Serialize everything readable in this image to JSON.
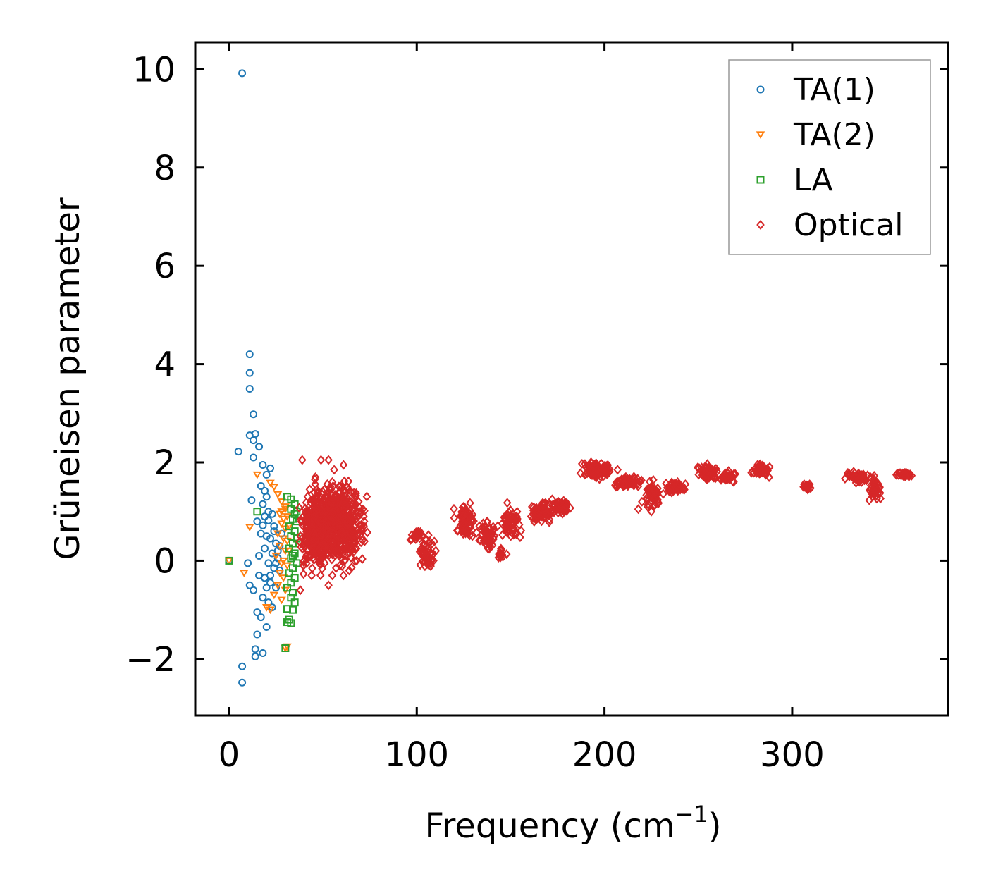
{
  "chart_data": {
    "type": "scatter",
    "xlabel": "Frequency (cm",
    "xlabel_sup": "−1",
    "xlabel_close": ")",
    "ylabel": "Grüneisen parameter",
    "xlim": [
      -18,
      383
    ],
    "ylim": [
      -3.15,
      10.55
    ],
    "xticks": [
      0,
      100,
      200,
      300
    ],
    "xtick_labels": [
      "0",
      "100",
      "200",
      "300"
    ],
    "yticks": [
      -2,
      0,
      2,
      4,
      6,
      8,
      10
    ],
    "ytick_labels": [
      "−2",
      "0",
      "2",
      "4",
      "6",
      "8",
      "10"
    ],
    "legend_position": "top-right",
    "series": [
      {
        "name": "TA(1)",
        "marker": "circle",
        "color": "#1f77b4",
        "points": [
          [
            7,
            9.92
          ],
          [
            11,
            4.2
          ],
          [
            11,
            3.82
          ],
          [
            11,
            3.5
          ],
          [
            13,
            2.98
          ],
          [
            11,
            2.55
          ],
          [
            14,
            2.58
          ],
          [
            13,
            2.45
          ],
          [
            16,
            2.32
          ],
          [
            5,
            2.22
          ],
          [
            13,
            2.1
          ],
          [
            18,
            1.95
          ],
          [
            20,
            1.75
          ],
          [
            22,
            1.88
          ],
          [
            17,
            1.52
          ],
          [
            19,
            1.42
          ],
          [
            12,
            1.23
          ],
          [
            18,
            1.15
          ],
          [
            21,
            1.0
          ],
          [
            23,
            0.95
          ],
          [
            15,
            0.8
          ],
          [
            18,
            0.72
          ],
          [
            21,
            0.82
          ],
          [
            24,
            0.6
          ],
          [
            17,
            0.55
          ],
          [
            20,
            0.5
          ],
          [
            22,
            0.45
          ],
          [
            25,
            0.35
          ],
          [
            27,
            0.3
          ],
          [
            19,
            0.25
          ],
          [
            23,
            0.15
          ],
          [
            26,
            0.05
          ],
          [
            21,
            -0.05
          ],
          [
            24,
            -0.15
          ],
          [
            27,
            -0.2
          ],
          [
            10,
            -0.05
          ],
          [
            16,
            -0.3
          ],
          [
            19,
            -0.35
          ],
          [
            22,
            -0.45
          ],
          [
            25,
            -0.55
          ],
          [
            11,
            -0.5
          ],
          [
            13,
            -0.6
          ],
          [
            18,
            -0.75
          ],
          [
            21,
            -0.85
          ],
          [
            23,
            -0.95
          ],
          [
            15,
            -1.05
          ],
          [
            17,
            -1.15
          ],
          [
            20,
            -1.35
          ],
          [
            15,
            -1.5
          ],
          [
            14,
            -1.8
          ],
          [
            14,
            -1.95
          ],
          [
            18,
            -1.88
          ],
          [
            7,
            -2.15
          ],
          [
            7,
            -2.48
          ],
          [
            0,
            0.0
          ],
          [
            28,
            0.55
          ],
          [
            26,
            0.2
          ],
          [
            24,
            0.7
          ],
          [
            20,
            1.3
          ],
          [
            22,
            -0.3
          ],
          [
            16,
            0.1
          ],
          [
            19,
            0.9
          ],
          [
            25,
            -0.05
          ],
          [
            20,
            -0.55
          ]
        ]
      },
      {
        "name": "TA(2)",
        "marker": "triangle-down",
        "color": "#ff7f0e",
        "points": [
          [
            22,
            1.58
          ],
          [
            24,
            1.5
          ],
          [
            26,
            1.35
          ],
          [
            15,
            1.75
          ],
          [
            28,
            1.2
          ],
          [
            30,
            1.05
          ],
          [
            27,
            0.95
          ],
          [
            29,
            0.85
          ],
          [
            31,
            0.9
          ],
          [
            28,
            0.75
          ],
          [
            30,
            0.65
          ],
          [
            26,
            0.55
          ],
          [
            29,
            0.45
          ],
          [
            31,
            0.4
          ],
          [
            27,
            0.3
          ],
          [
            30,
            0.2
          ],
          [
            25,
            0.1
          ],
          [
            28,
            -0.05
          ],
          [
            31,
            -0.1
          ],
          [
            27,
            -0.25
          ],
          [
            29,
            -0.35
          ],
          [
            26,
            -0.5
          ],
          [
            30,
            -0.6
          ],
          [
            24,
            -0.7
          ],
          [
            28,
            -0.8
          ],
          [
            20,
            -0.95
          ],
          [
            22,
            -1.0
          ],
          [
            11,
            0.68
          ],
          [
            30,
            -1.78
          ],
          [
            31,
            -1.75
          ],
          [
            8,
            -0.25
          ],
          [
            0,
            0.0
          ],
          [
            30,
            1.1
          ],
          [
            32,
            0.7
          ],
          [
            29,
            0.0
          ],
          [
            28,
            1.0
          ],
          [
            32,
            0.2
          ]
        ]
      },
      {
        "name": "LA",
        "marker": "square",
        "color": "#2ca02c",
        "points": [
          [
            31,
            1.3
          ],
          [
            33,
            1.25
          ],
          [
            35,
            1.15
          ],
          [
            15,
            1.0
          ],
          [
            33,
            1.05
          ],
          [
            35,
            0.95
          ],
          [
            34,
            0.85
          ],
          [
            36,
            0.8
          ],
          [
            32,
            0.7
          ],
          [
            35,
            0.6
          ],
          [
            33,
            0.5
          ],
          [
            36,
            0.45
          ],
          [
            34,
            0.35
          ],
          [
            32,
            0.25
          ],
          [
            35,
            0.15
          ],
          [
            33,
            0.05
          ],
          [
            36,
            -0.05
          ],
          [
            34,
            -0.15
          ],
          [
            32,
            -0.25
          ],
          [
            35,
            -0.35
          ],
          [
            33,
            -0.45
          ],
          [
            31,
            -0.55
          ],
          [
            34,
            -0.65
          ],
          [
            33,
            -0.75
          ],
          [
            35,
            -0.85
          ],
          [
            31,
            -0.98
          ],
          [
            34,
            -1.0
          ],
          [
            32,
            -1.2
          ],
          [
            31,
            -1.25
          ],
          [
            33,
            -1.27
          ],
          [
            30,
            -1.78
          ],
          [
            36,
            1.0
          ],
          [
            34,
            0.1
          ],
          [
            0,
            0.0
          ]
        ]
      },
      {
        "name": "Optical",
        "marker": "diamond",
        "color": "#d62728",
        "points": [
          [
            39,
            2.05
          ],
          [
            43,
            1.45
          ],
          [
            45,
            1.2
          ],
          [
            41,
            0.95
          ],
          [
            38,
            0.5
          ],
          [
            40,
            0.0
          ],
          [
            44,
            -0.3
          ],
          [
            49,
            2.05
          ],
          [
            53,
            2.05
          ],
          [
            55,
            1.6
          ],
          [
            50,
            1.4
          ],
          [
            48,
            0.9
          ],
          [
            52,
            0.6
          ],
          [
            54,
            0.3
          ],
          [
            51,
            -0.05
          ],
          [
            55,
            -0.3
          ],
          [
            53,
            -0.5
          ],
          [
            61,
            1.95
          ],
          [
            63,
            1.5
          ],
          [
            58,
            1.1
          ],
          [
            60,
            0.7
          ],
          [
            62,
            0.3
          ],
          [
            59,
            -0.1
          ],
          [
            61,
            -0.3
          ],
          [
            68,
            0.0
          ],
          [
            66,
            0.8
          ],
          [
            69,
            1.2
          ],
          [
            71,
            0.6
          ],
          [
            65,
            1.4
          ],
          [
            47,
            0.45
          ],
          [
            57,
            -0.15
          ],
          [
            45,
            0.7
          ],
          [
            56,
            1.85
          ],
          [
            60,
            0.05
          ],
          [
            64,
            -0.2
          ],
          [
            38,
            -0.6
          ],
          [
            42,
            0.2
          ],
          [
            46,
            1.7
          ],
          [
            70,
            0.95
          ],
          [
            72,
            0.8
          ],
          [
            218,
            1.05
          ],
          [
            220,
            1.2
          ],
          [
            223,
            1.1
          ],
          [
            225,
            1.0
          ]
        ],
        "clusters": [
          {
            "xc": 56,
            "yc": 0.75,
            "sx": 14,
            "sy": 0.7,
            "n": 600
          },
          {
            "xc": 45,
            "yc": 0.5,
            "sx": 6,
            "sy": 0.6,
            "n": 180
          },
          {
            "xc": 100,
            "yc": 0.5,
            "sx": 3,
            "sy": 0.1,
            "n": 30
          },
          {
            "xc": 106,
            "yc": 0.2,
            "sx": 4,
            "sy": 0.3,
            "n": 50
          },
          {
            "xc": 126,
            "yc": 0.8,
            "sx": 5,
            "sy": 0.3,
            "n": 70
          },
          {
            "xc": 137,
            "yc": 0.5,
            "sx": 4,
            "sy": 0.3,
            "n": 50
          },
          {
            "xc": 145,
            "yc": 0.15,
            "sx": 2,
            "sy": 0.1,
            "n": 15
          },
          {
            "xc": 150,
            "yc": 0.75,
            "sx": 5,
            "sy": 0.3,
            "n": 60
          },
          {
            "xc": 166,
            "yc": 1.0,
            "sx": 6,
            "sy": 0.2,
            "n": 60
          },
          {
            "xc": 177,
            "yc": 1.1,
            "sx": 5,
            "sy": 0.15,
            "n": 50
          },
          {
            "xc": 196,
            "yc": 1.85,
            "sx": 8,
            "sy": 0.15,
            "n": 90
          },
          {
            "xc": 212,
            "yc": 1.6,
            "sx": 7,
            "sy": 0.1,
            "n": 70
          },
          {
            "xc": 226,
            "yc": 1.35,
            "sx": 4,
            "sy": 0.25,
            "n": 50
          },
          {
            "xc": 238,
            "yc": 1.5,
            "sx": 5,
            "sy": 0.1,
            "n": 50
          },
          {
            "xc": 255,
            "yc": 1.8,
            "sx": 5,
            "sy": 0.15,
            "n": 60
          },
          {
            "xc": 266,
            "yc": 1.7,
            "sx": 4,
            "sy": 0.1,
            "n": 40
          },
          {
            "xc": 283,
            "yc": 1.85,
            "sx": 4,
            "sy": 0.1,
            "n": 50
          },
          {
            "xc": 308,
            "yc": 1.5,
            "sx": 2,
            "sy": 0.05,
            "n": 20
          },
          {
            "xc": 335,
            "yc": 1.7,
            "sx": 6,
            "sy": 0.1,
            "n": 50
          },
          {
            "xc": 344,
            "yc": 1.45,
            "sx": 3,
            "sy": 0.2,
            "n": 40
          },
          {
            "xc": 360,
            "yc": 1.75,
            "sx": 4,
            "sy": 0.05,
            "n": 30
          }
        ]
      }
    ]
  }
}
